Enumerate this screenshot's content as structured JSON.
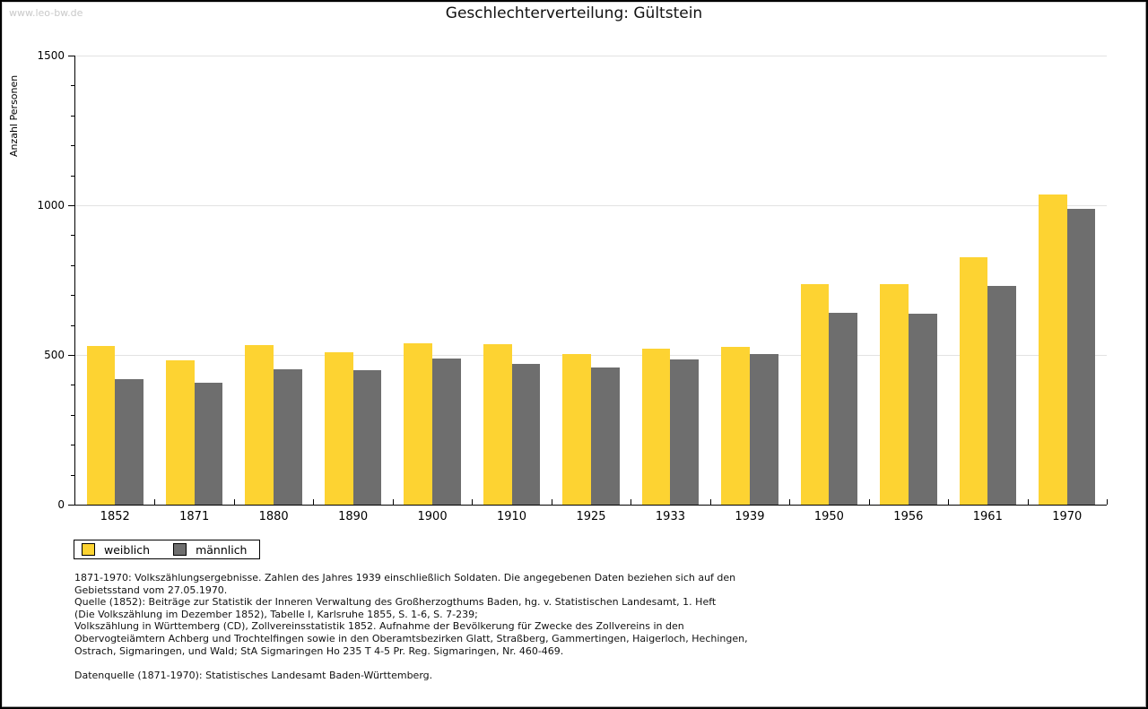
{
  "watermark": "www.leo-bw.de",
  "title": "Geschlechterverteilung: Gültstein",
  "chart_data": {
    "type": "bar",
    "title": "Geschlechterverteilung: Gültstein",
    "ylabel": "Anzahl Personen",
    "xlabel": "",
    "categories": [
      "1852",
      "1871",
      "1880",
      "1890",
      "1900",
      "1910",
      "1925",
      "1933",
      "1939",
      "1950",
      "1956",
      "1961",
      "1970"
    ],
    "series": [
      {
        "name": "weiblich",
        "color": "#FDD332",
        "values": [
          530,
          483,
          532,
          510,
          539,
          536,
          504,
          522,
          526,
          737,
          736,
          826,
          1035
        ]
      },
      {
        "name": "männlich",
        "color": "#6E6E6E",
        "values": [
          419,
          408,
          452,
          449,
          488,
          471,
          458,
          486,
          504,
          641,
          637,
          732,
          987
        ]
      }
    ],
    "ylim": [
      0,
      1500
    ],
    "yticks": [
      0,
      500,
      1000,
      1500
    ],
    "minor_tick_step": 100,
    "grid": true,
    "gridline_color": "#e2e2e2",
    "legend_position": "bottom-left"
  },
  "footnotes": {
    "lines": [
      "1871-1970: Volkszählungsergebnisse. Zahlen des Jahres 1939 einschließlich Soldaten. Die angegebenen Daten beziehen sich auf den",
      "Gebietsstand vom 27.05.1970.",
      "Quelle (1852): Beiträge zur Statistik der Inneren Verwaltung des Großherzogthums Baden, hg. v. Statistischen Landesamt, 1. Heft",
      "(Die Volkszählung im Dezember 1852), Tabelle I, Karlsruhe 1855, S. 1-6, S. 7-239;",
      "Volkszählung in Württemberg (CD), Zollvereinsstatistik 1852. Aufnahme der Bevölkerung für Zwecke des Zollvereins in den",
      "Obervogteiämtern Achberg und Trochtelfingen sowie in den Oberamtsbezirken Glatt, Straßberg, Gammertingen, Haigerloch, Hechingen,",
      "Ostrach, Sigmaringen, und Wald; StA Sigmaringen Ho 235 T 4-5 Pr. Reg. Sigmaringen, Nr. 460-469."
    ],
    "datenquelle": "Datenquelle (1871-1970): Statistisches Landesamt Baden-Württemberg."
  }
}
